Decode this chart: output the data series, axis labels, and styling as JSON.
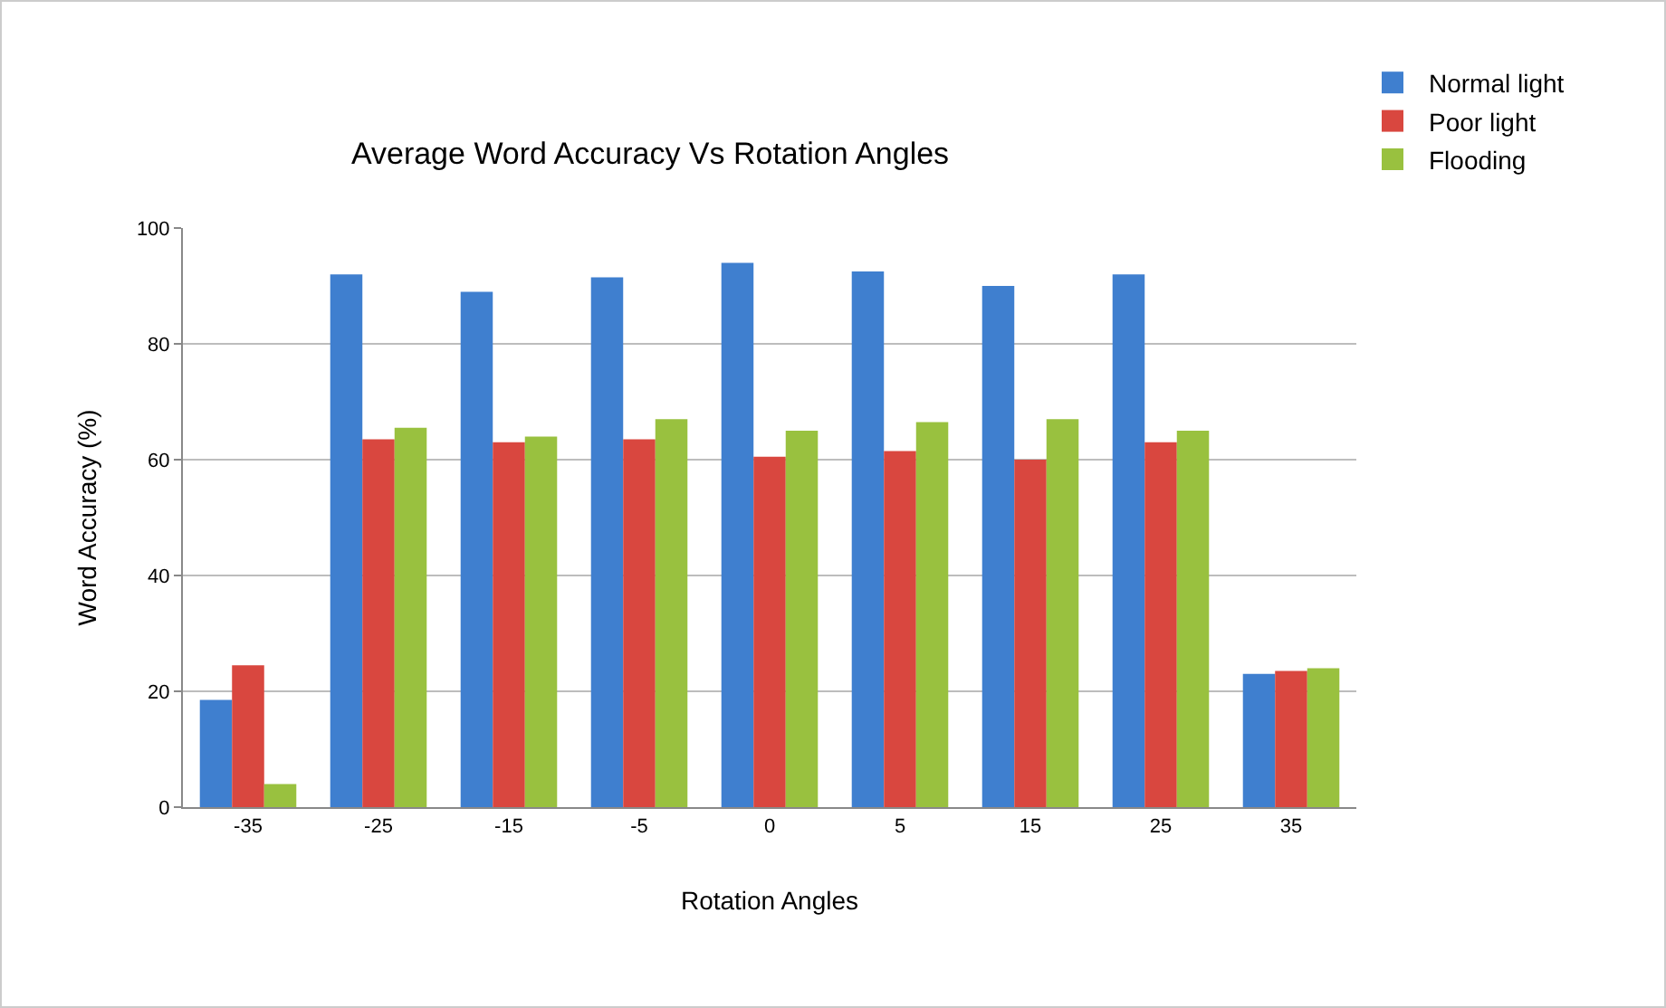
{
  "chart_data": {
    "type": "bar",
    "title": "Average Word Accuracy Vs Rotation Angles",
    "xlabel": "Rotation Angles",
    "ylabel": "Word Accuracy (%)",
    "categories": [
      "-35",
      "-25",
      "-15",
      "-5",
      "0",
      "5",
      "15",
      "25",
      "35"
    ],
    "series": [
      {
        "name": "Normal light",
        "color": "#3f7fcf",
        "values": [
          18.5,
          92,
          89,
          91.5,
          94,
          92.5,
          90,
          92,
          23
        ]
      },
      {
        "name": "Poor light",
        "color": "#d9473f",
        "values": [
          24.5,
          63.5,
          63,
          63.5,
          60.5,
          61.5,
          60,
          63,
          23.5
        ]
      },
      {
        "name": "Flooding",
        "color": "#99c13f",
        "values": [
          4,
          65.5,
          64,
          67,
          65,
          66.5,
          67,
          65,
          24
        ]
      }
    ],
    "ylim": [
      0,
      100
    ],
    "yticks": [
      0,
      20,
      40,
      60,
      80,
      100
    ],
    "grid": "y",
    "legend": "top right"
  }
}
